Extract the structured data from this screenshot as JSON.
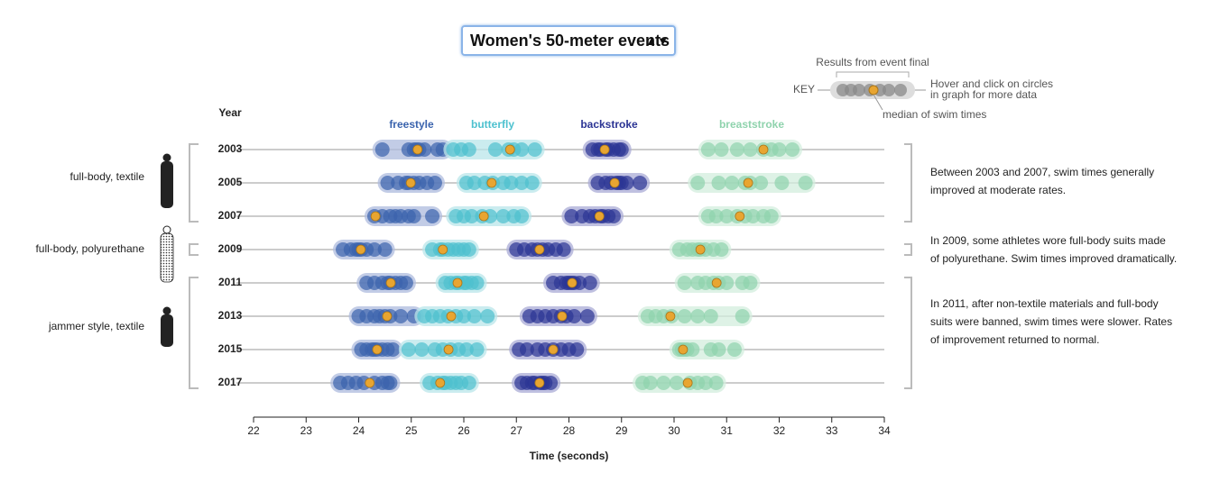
{
  "chart_data": {
    "type": "strip",
    "selector": "Women's 50-meter events",
    "y_header": "Year",
    "x_label": "Time (seconds)",
    "categories": [
      "2003",
      "2005",
      "2007",
      "2009",
      "2011",
      "2013",
      "2015",
      "2017"
    ],
    "xlim": [
      22,
      34
    ],
    "xticks": [
      22,
      23,
      24,
      25,
      26,
      27,
      28,
      29,
      30,
      31,
      32,
      33,
      34
    ],
    "median_color": "#e8a531",
    "series": [
      {
        "name": "freestyle",
        "color": "#3a63ad",
        "band_color": "#aebbdd",
        "values": [
          [
            24.45,
            24.95,
            25.05,
            25.1,
            25.15,
            25.25,
            25.5,
            25.6
          ],
          [
            24.55,
            24.75,
            24.9,
            24.95,
            25.05,
            25.15,
            25.3,
            25.45
          ],
          [
            24.3,
            24.45,
            24.6,
            24.7,
            24.8,
            24.95,
            25.05,
            25.4
          ],
          [
            23.7,
            23.85,
            23.95,
            24.0,
            24.05,
            24.15,
            24.3,
            24.5
          ],
          [
            24.15,
            24.3,
            24.45,
            24.55,
            24.6,
            24.7,
            24.8,
            24.9
          ],
          [
            24.0,
            24.15,
            24.3,
            24.4,
            24.5,
            24.6,
            24.8,
            25.05
          ],
          [
            24.05,
            24.15,
            24.25,
            24.3,
            24.35,
            24.45,
            24.55,
            24.65
          ],
          [
            23.65,
            23.8,
            23.95,
            24.1,
            24.3,
            24.45,
            24.55,
            24.6
          ]
        ],
        "medians": [
          25.12,
          24.99,
          24.32,
          24.04,
          24.61,
          24.54,
          24.35,
          24.21
        ]
      },
      {
        "name": "butterfly",
        "color": "#4dc1cf",
        "band_color": "#b9e6ea",
        "values": [
          [
            25.8,
            25.95,
            26.1,
            26.6,
            26.85,
            26.95,
            27.1,
            27.35
          ],
          [
            26.05,
            26.2,
            26.4,
            26.55,
            26.75,
            26.9,
            27.1,
            27.3
          ],
          [
            25.85,
            26.0,
            26.15,
            26.35,
            26.5,
            26.75,
            26.95,
            27.1
          ],
          [
            25.4,
            25.55,
            25.6,
            25.7,
            25.8,
            25.9,
            26.0,
            26.1
          ],
          [
            25.65,
            25.75,
            25.85,
            25.9,
            26.0,
            26.05,
            26.15,
            26.25
          ],
          [
            25.25,
            25.4,
            25.55,
            25.7,
            25.85,
            26.0,
            26.2,
            26.45
          ],
          [
            24.95,
            25.2,
            25.45,
            25.6,
            25.75,
            25.9,
            26.05,
            26.25
          ],
          [
            25.35,
            25.5,
            25.6,
            25.65,
            25.75,
            25.85,
            25.95,
            26.1
          ]
        ],
        "medians": [
          26.88,
          26.53,
          26.38,
          25.6,
          25.88,
          25.76,
          25.71,
          25.55
        ]
      },
      {
        "name": "backstroke",
        "color": "#2b3494",
        "band_color": "#a9abd6",
        "values": [
          [
            28.45,
            28.55,
            28.6,
            28.7,
            28.75,
            28.85,
            28.95,
            29.0
          ],
          [
            28.55,
            28.7,
            28.8,
            28.9,
            28.95,
            29.0,
            29.1,
            29.35
          ],
          [
            28.05,
            28.25,
            28.4,
            28.5,
            28.6,
            28.65,
            28.75,
            28.85
          ],
          [
            27.0,
            27.15,
            27.3,
            27.4,
            27.5,
            27.6,
            27.75,
            27.9
          ],
          [
            27.7,
            27.85,
            27.95,
            28.0,
            28.05,
            28.1,
            28.2,
            28.4
          ],
          [
            27.25,
            27.4,
            27.55,
            27.7,
            27.85,
            27.95,
            28.1,
            28.35
          ],
          [
            27.05,
            27.2,
            27.4,
            27.55,
            27.7,
            27.85,
            28.0,
            28.15
          ],
          [
            27.1,
            27.2,
            27.3,
            27.35,
            27.45,
            27.5,
            27.55,
            27.65
          ]
        ],
        "medians": [
          28.68,
          28.87,
          28.58,
          27.44,
          28.06,
          27.87,
          27.7,
          27.44
        ]
      },
      {
        "name": "breaststroke",
        "color": "#8fd3ad",
        "band_color": "#d3eedd",
        "values": [
          [
            30.65,
            30.9,
            31.2,
            31.45,
            31.7,
            31.85,
            32.0,
            32.25
          ],
          [
            30.45,
            30.85,
            31.1,
            31.35,
            31.45,
            31.65,
            32.05,
            32.5
          ],
          [
            30.65,
            30.8,
            31.0,
            31.2,
            31.35,
            31.5,
            31.7,
            31.85
          ],
          [
            30.1,
            30.25,
            30.35,
            30.45,
            30.5,
            30.6,
            30.75,
            30.9
          ],
          [
            30.2,
            30.45,
            30.6,
            30.75,
            30.85,
            31.0,
            31.3,
            31.45
          ],
          [
            29.5,
            29.65,
            29.8,
            29.95,
            30.2,
            30.45,
            30.7,
            31.3
          ],
          [
            30.1,
            30.15,
            30.2,
            30.25,
            30.35,
            30.7,
            30.85,
            31.15
          ],
          [
            29.4,
            29.55,
            29.8,
            30.05,
            30.3,
            30.45,
            30.6,
            30.8
          ]
        ],
        "medians": [
          31.7,
          31.41,
          31.25,
          30.5,
          30.81,
          29.93,
          30.17,
          30.26
        ]
      }
    ],
    "groups": [
      {
        "label": "full-body, textile",
        "note": [
          "Between 2003 and 2007, swim times generally",
          "improved at moderate rates."
        ]
      },
      {
        "label": "full-body, polyurethane",
        "note": [
          "In 2009, some athletes wore full-body suits made",
          "of polyurethane. Swim times improved dramatically."
        ]
      },
      {
        "label": "jammer style, textile",
        "note": [
          "In 2011, after non-textile materials and full-body",
          "suits were banned, swim times were slower. Rates",
          "of improvement returned to normal."
        ]
      }
    ],
    "key": {
      "title": "KEY",
      "top_note": "Results from event final",
      "side_note": [
        "Hover and click on circles",
        "in graph for more data"
      ],
      "median_note": "median of swim times"
    }
  }
}
